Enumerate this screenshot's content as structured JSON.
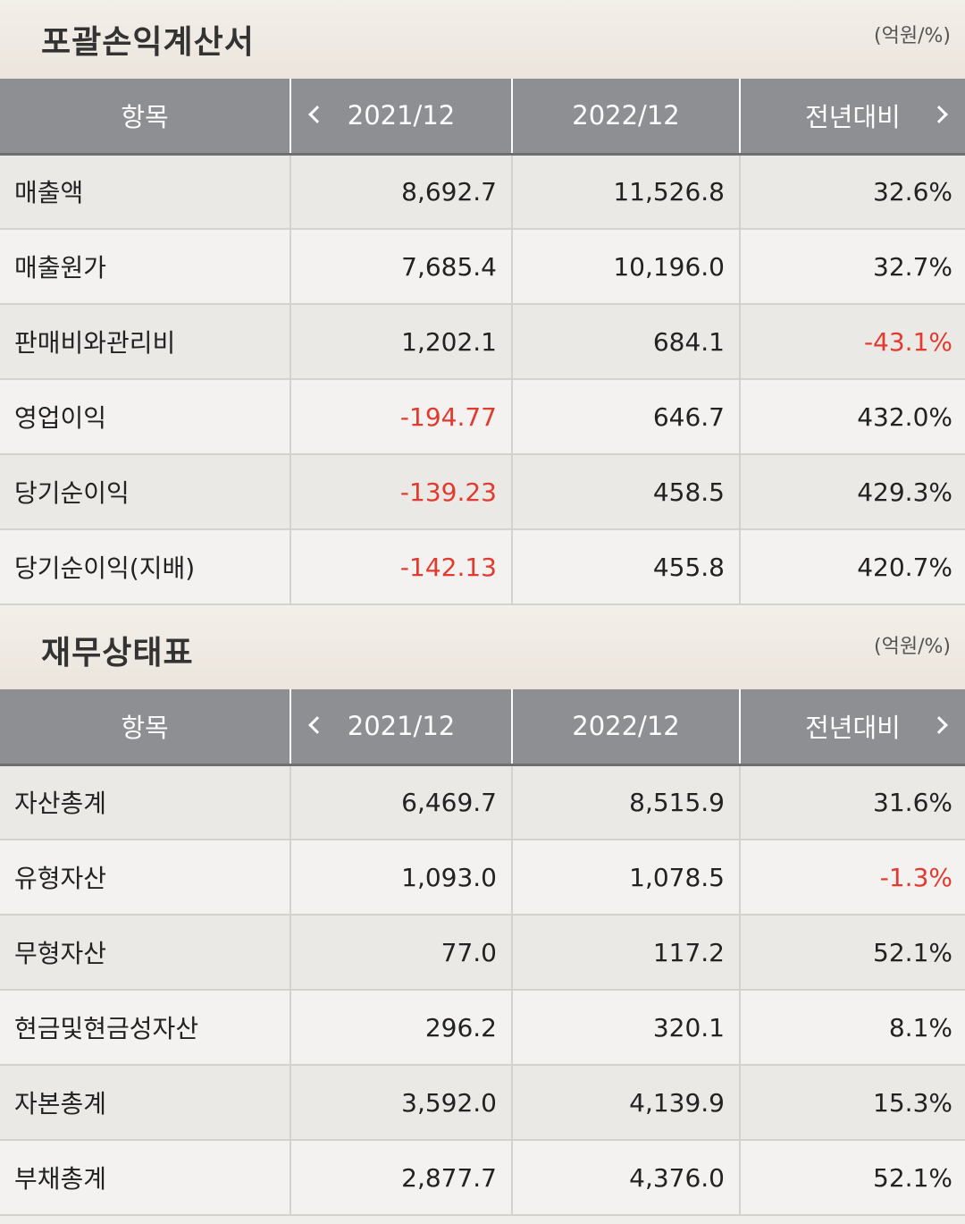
{
  "income": {
    "title": "포괄손익계산서",
    "unit": "(억원/%)",
    "headers": [
      "항목",
      "2021/12",
      "2022/12",
      "전년대비"
    ],
    "rows": [
      {
        "item": "매출액",
        "y2021": "8,692.7",
        "y2022": "11,526.8",
        "yoy": "32.6%"
      },
      {
        "item": "매출원가",
        "y2021": "7,685.4",
        "y2022": "10,196.0",
        "yoy": "32.7%"
      },
      {
        "item": "판매비와관리비",
        "y2021": "1,202.1",
        "y2022": "684.1",
        "yoy": "-43.1%"
      },
      {
        "item": "영업이익",
        "y2021": "-194.77",
        "y2022": "646.7",
        "yoy": "432.0%"
      },
      {
        "item": "당기순이익",
        "y2021": "-139.23",
        "y2022": "458.5",
        "yoy": "429.3%"
      },
      {
        "item": "당기순이익(지배)",
        "y2021": "-142.13",
        "y2022": "455.8",
        "yoy": "420.7%"
      }
    ]
  },
  "balance": {
    "title": "재무상태표",
    "unit": "(억원/%)",
    "headers": [
      "항목",
      "2021/12",
      "2022/12",
      "전년대비"
    ],
    "rows": [
      {
        "item": "자산총계",
        "y2021": "6,469.7",
        "y2022": "8,515.9",
        "yoy": "31.6%"
      },
      {
        "item": "유형자산",
        "y2021": "1,093.0",
        "y2022": "1,078.5",
        "yoy": "-1.3%"
      },
      {
        "item": "무형자산",
        "y2021": "77.0",
        "y2022": "117.2",
        "yoy": "52.1%"
      },
      {
        "item": "현금및현금성자산",
        "y2021": "296.2",
        "y2022": "320.1",
        "yoy": "8.1%"
      },
      {
        "item": "자본총계",
        "y2021": "3,592.0",
        "y2022": "4,139.9",
        "yoy": "15.3%"
      },
      {
        "item": "부채총계",
        "y2021": "2,877.7",
        "y2022": "4,376.0",
        "yoy": "52.1%"
      }
    ]
  },
  "colors": {
    "header_bg": "#8e8f93",
    "negative": "#e23a2e",
    "row_odd": "#ebe9e5",
    "row_even": "#f3f2f0"
  },
  "icons": {
    "prev": "chevron-left-icon",
    "next": "chevron-right-icon"
  }
}
